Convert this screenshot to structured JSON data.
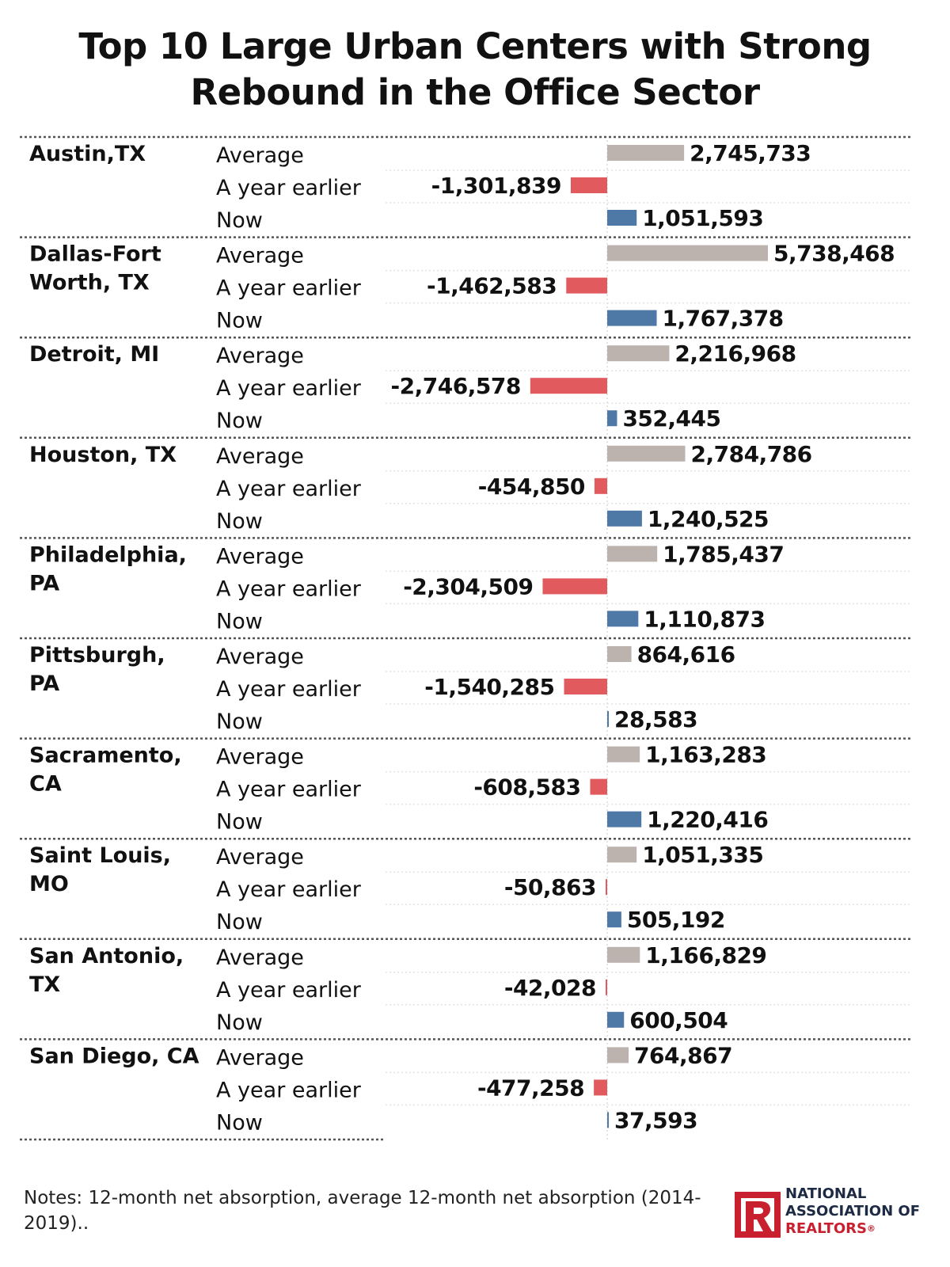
{
  "title_lines": [
    "Top 10 Large Urban Centers with Strong",
    "Rebound in the Office Sector"
  ],
  "row_labels": [
    "Average",
    "A year earlier",
    "Now"
  ],
  "colors": {
    "Average": "#bcb3af",
    "A year earlier": "#e05a5e",
    "Now": "#4e79a7",
    "logo_red": "#c8202f",
    "logo_navy": "#1d2a44"
  },
  "notes": "Notes: 12-month net absorption, average 12-month net absorption (2014-2019)..",
  "logo": {
    "line1": "NATIONAL",
    "line2": "ASSOCIATION OF",
    "line3": "REALTORS",
    "mark": "R",
    "registered": "®"
  },
  "chart_data": {
    "type": "bar",
    "orientation": "horizontal",
    "title": "Top 10 Large Urban Centers with Strong Rebound in the Office Sector",
    "series_names": [
      "Average",
      "A year earlier",
      "Now"
    ],
    "groups": [
      {
        "city_lines": [
          "Austin,TX"
        ],
        "values": [
          2745733,
          -1301839,
          1051593
        ],
        "labels": [
          "2,745,733",
          "-1,301,839",
          "1,051,593"
        ]
      },
      {
        "city_lines": [
          "Dallas-Fort",
          "Worth, TX"
        ],
        "values": [
          5738468,
          -1462583,
          1767378
        ],
        "labels": [
          "5,738,468",
          "-1,462,583",
          "1,767,378"
        ]
      },
      {
        "city_lines": [
          "Detroit, MI"
        ],
        "values": [
          2216968,
          -2746578,
          352445
        ],
        "labels": [
          "2,216,968",
          "-2,746,578",
          "352,445"
        ]
      },
      {
        "city_lines": [
          "Houston, TX"
        ],
        "values": [
          2784786,
          -454850,
          1240525
        ],
        "labels": [
          "2,784,786",
          "-454,850",
          "1,240,525"
        ]
      },
      {
        "city_lines": [
          "Philadelphia,",
          "PA"
        ],
        "values": [
          1785437,
          -2304509,
          1110873
        ],
        "labels": [
          "1,785,437",
          "-2,304,509",
          "1,110,873"
        ]
      },
      {
        "city_lines": [
          "Pittsburgh,",
          "PA"
        ],
        "values": [
          864616,
          -1540285,
          28583
        ],
        "labels": [
          "864,616",
          "-1,540,285",
          "28,583"
        ]
      },
      {
        "city_lines": [
          "Sacramento,",
          "CA"
        ],
        "values": [
          1163283,
          -608583,
          1220416
        ],
        "labels": [
          "1,163,283",
          "-608,583",
          "1,220,416"
        ]
      },
      {
        "city_lines": [
          "Saint Louis,",
          "MO"
        ],
        "values": [
          1051335,
          -50863,
          505192
        ],
        "labels": [
          "1,051,335",
          "-50,863",
          "505,192"
        ]
      },
      {
        "city_lines": [
          "San Antonio,",
          "TX"
        ],
        "values": [
          1166829,
          -42028,
          600504
        ],
        "labels": [
          "1,166,829",
          "-42,028",
          "600,504"
        ]
      },
      {
        "city_lines": [
          "San Diego, CA"
        ],
        "values": [
          764867,
          -477258,
          37593
        ],
        "labels": [
          "764,867",
          "-477,258",
          "37,593"
        ]
      }
    ]
  }
}
